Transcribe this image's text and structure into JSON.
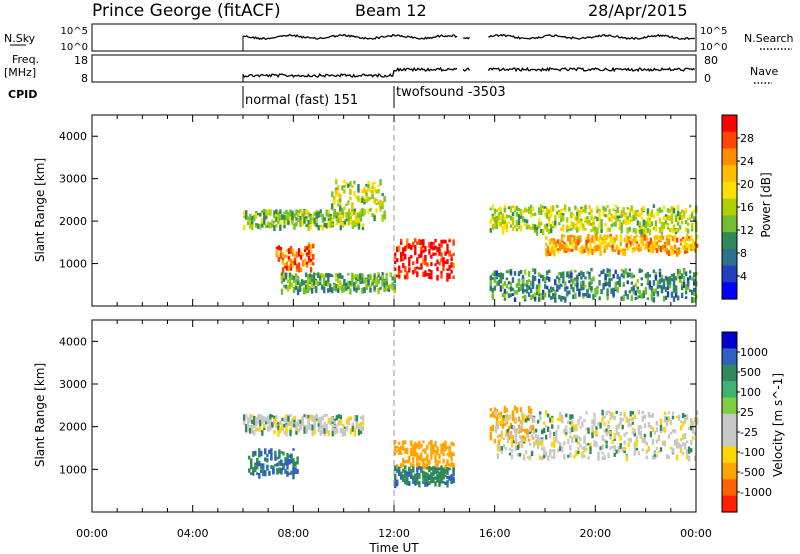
{
  "header": {
    "station": "Prince George (fitACF)",
    "beam": "Beam 12",
    "date": "28/Apr/2015"
  },
  "strip_labels": {
    "nsky": "N.Sky",
    "freq_line1": "Freq.",
    "freq_line2": "[MHz]",
    "cpid": "CPID",
    "nsearch": "N.Search",
    "nave": "Nave",
    "nsky_ticks": [
      "10^5",
      "10^0"
    ],
    "nsearch_ticks": [
      "10^5",
      "10^0"
    ],
    "freq_ticks": [
      "18",
      "8"
    ],
    "nave_ticks": [
      "80",
      "0"
    ]
  },
  "cpid_modes": [
    {
      "label": "normal (fast) 151",
      "start_hour": 6.0
    },
    {
      "label": "twofsound  -3503",
      "start_hour": 12.0
    }
  ],
  "chart_data": [
    {
      "type": "heatmap",
      "name": "power",
      "ylabel": "Slant Range [km]",
      "xlabel": "",
      "ylim": [
        0,
        4500
      ],
      "xlim": [
        0,
        24
      ],
      "colorbar_label": "Power [dB]",
      "colorbar_ticks": [
        "28",
        "24",
        "20",
        "16",
        "12",
        "8",
        "4"
      ],
      "colorbar_colors": [
        "#ff0000",
        "#ff4500",
        "#ff8c00",
        "#ffbf00",
        "#ffe000",
        "#b0d000",
        "#70c030",
        "#2e8b57",
        "#2f6f8f",
        "#1f3fbf",
        "#0000ff"
      ],
      "yticks": [
        "4000",
        "3000",
        "2000",
        "1000"
      ],
      "data_gaps_hours": [
        [
          0,
          6.0
        ],
        [
          14.55,
          14.75
        ],
        [
          15.05,
          15.75
        ]
      ],
      "echo_regions": [
        {
          "feature": "upper band",
          "start_hour": 6.0,
          "end_hour": 10.8,
          "range_km": [
            1900,
            2300
          ],
          "power_db": 12
        },
        {
          "feature": "rising arc",
          "start_hour": 9.5,
          "end_hour": 11.6,
          "range_km": [
            2100,
            3000
          ],
          "power_db": 14
        },
        {
          "feature": "lower patch",
          "start_hour": 7.3,
          "end_hour": 8.8,
          "range_km": [
            900,
            1500
          ],
          "power_db": 24
        },
        {
          "feature": "strong core",
          "start_hour": 12.0,
          "end_hour": 14.4,
          "range_km": [
            700,
            1600
          ],
          "power_db": 28
        },
        {
          "feature": "near-range band",
          "start_hour": 7.5,
          "end_hour": 12.0,
          "range_km": [
            400,
            800
          ],
          "power_db": 10
        },
        {
          "feature": "afternoon band",
          "start_hour": 15.8,
          "end_hour": 24.0,
          "range_km": [
            1800,
            2400
          ],
          "power_db": 14
        },
        {
          "feature": "evening band",
          "start_hour": 18.0,
          "end_hour": 24.0,
          "range_km": [
            1300,
            1700
          ],
          "power_db": 20
        },
        {
          "feature": "late near-range",
          "start_hour": 15.8,
          "end_hour": 24.0,
          "range_km": [
            200,
            900
          ],
          "power_db": 8
        }
      ]
    },
    {
      "type": "heatmap",
      "name": "velocity",
      "ylabel": "Slant Range [km]",
      "xlabel": "Time UT",
      "ylim": [
        0,
        4500
      ],
      "xlim": [
        0,
        24
      ],
      "colorbar_label": "Velocity [m s^-1]",
      "colorbar_ticks": [
        "1000",
        "500",
        "100",
        "25",
        "-25",
        "-100",
        "-500",
        "-1000"
      ],
      "colorbar_colors": [
        "#0000cd",
        "#3060c0",
        "#2e8b57",
        "#3cb371",
        "#7fd040",
        "#c8c8c8",
        "#c8c8c8",
        "#ffd700",
        "#ffa500",
        "#ff6000",
        "#ff2000"
      ],
      "yticks": [
        "4000",
        "3000",
        "2000",
        "1000"
      ],
      "xticks": [
        "00:00",
        "04:00",
        "08:00",
        "12:00",
        "16:00",
        "20:00",
        "00:00"
      ],
      "data_gaps_hours": [
        [
          0,
          6.0
        ],
        [
          14.55,
          14.75
        ],
        [
          15.05,
          15.75
        ]
      ],
      "echo_regions": [
        {
          "feature": "ground scatter band",
          "start_hour": 6.0,
          "end_hour": 10.8,
          "range_km": [
            1900,
            2300
          ],
          "velocity": 0
        },
        {
          "feature": "green patch",
          "start_hour": 6.2,
          "end_hour": 8.2,
          "range_km": [
            900,
            1500
          ],
          "velocity": 100
        },
        {
          "feature": "orange core",
          "start_hour": 12.0,
          "end_hour": 14.4,
          "range_km": [
            1100,
            1700
          ],
          "velocity": -200
        },
        {
          "feature": "green core",
          "start_hour": 12.0,
          "end_hour": 14.4,
          "range_km": [
            700,
            1100
          ],
          "velocity": 80
        },
        {
          "feature": "orange burst",
          "start_hour": 15.8,
          "end_hour": 17.5,
          "range_km": [
            1600,
            2500
          ],
          "velocity": -300
        },
        {
          "feature": "grey bands",
          "start_hour": 16.0,
          "end_hour": 24.0,
          "range_km": [
            1300,
            2400
          ],
          "velocity": 0
        }
      ]
    }
  ]
}
